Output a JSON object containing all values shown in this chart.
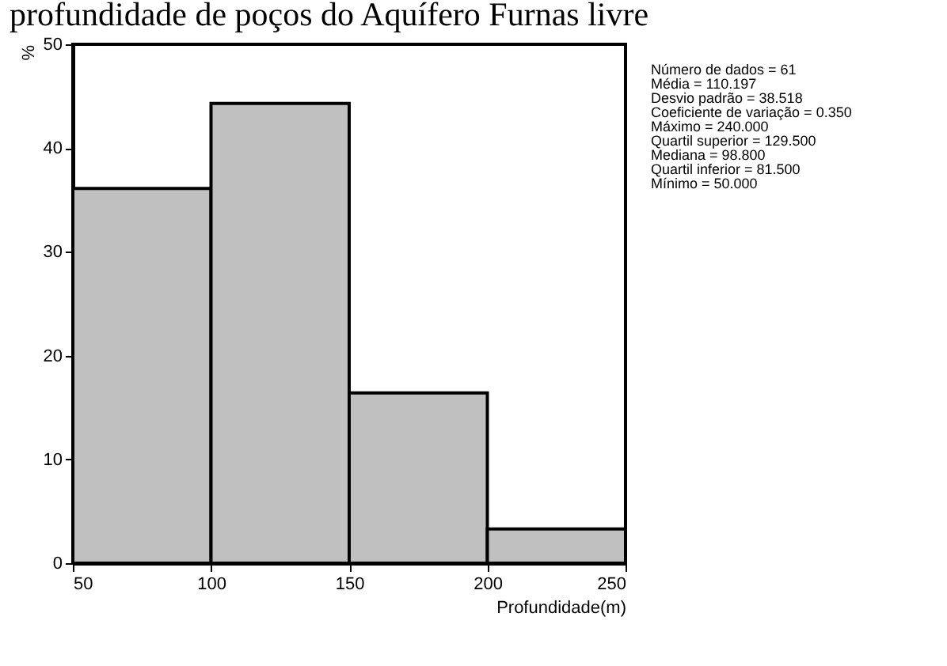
{
  "chart_data": {
    "type": "histogram",
    "title": "profundidade de poços do Aquífero Furnas livre",
    "xlabel": "Profundidade(m)",
    "ylabel": "%",
    "bins": [
      50,
      100,
      150,
      200,
      250
    ],
    "values": [
      36.1,
      44.3,
      16.4,
      3.3
    ],
    "color": "#c0c0c0",
    "xlim": [
      50,
      250
    ],
    "xticks": [
      50,
      100,
      150,
      200,
      250
    ],
    "ylim": [
      0,
      50
    ],
    "yticks": [
      0,
      10,
      20,
      30,
      40,
      50
    ],
    "grid": false,
    "annotations": [
      "Número de dados = 61",
      "Média = 110.197",
      "Desvio padrão = 38.518",
      "Coeficiente de variação = 0.350",
      "Máximo = 240.000",
      "Quartil superior = 129.500",
      "Mediana = 98.800",
      "Quartil inferior = 81.500",
      "Mínimo = 50.000"
    ]
  }
}
